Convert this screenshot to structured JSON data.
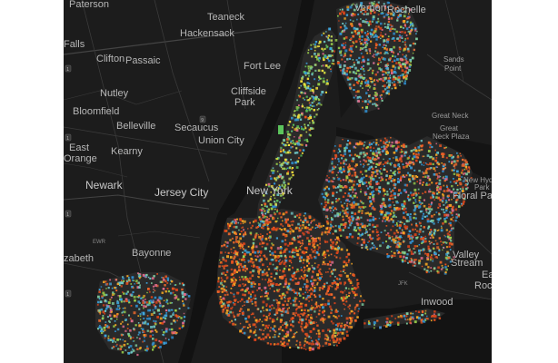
{
  "map": {
    "colors": {
      "background": "#1c1c1c",
      "water": "#121212",
      "land": "#242424",
      "page": "#ffffff",
      "label": "#b7b7b7"
    },
    "dot_palette": [
      "#e8531f",
      "#f06a2c",
      "#d9431a",
      "#3fa8e0",
      "#2f8fd0",
      "#7fd0a0",
      "#f2e03a",
      "#5cc45c",
      "#9ad14b",
      "#c0d85a",
      "#f5a623",
      "#e06b8b",
      "#6fc7c7",
      "#ffffff"
    ],
    "labels": [
      {
        "text": "Paterson"
      },
      {
        "text": "Teaneck"
      },
      {
        "text": "Hackensack"
      },
      {
        "text": "Vernon"
      },
      {
        "text": "Rochelle"
      },
      {
        "text": "Falls"
      },
      {
        "text": "Clifton"
      },
      {
        "text": "Passaic"
      },
      {
        "text": "Fort Lee"
      },
      {
        "text": "Sands"
      },
      {
        "text": "Point"
      },
      {
        "text": "Nutley"
      },
      {
        "text": "Cliffside"
      },
      {
        "text": "Park"
      },
      {
        "text": "Bloomfield"
      },
      {
        "text": "Belleville"
      },
      {
        "text": "Secaucus"
      },
      {
        "text": "Great Neck"
      },
      {
        "text": "Great"
      },
      {
        "text": "Neck Plaza"
      },
      {
        "text": "East"
      },
      {
        "text": "Orange"
      },
      {
        "text": "Union City"
      },
      {
        "text": "Kearny"
      },
      {
        "text": "New Hyde"
      },
      {
        "text": "Park"
      },
      {
        "text": "Newark"
      },
      {
        "text": "Jersey City"
      },
      {
        "text": "New York"
      },
      {
        "text": "Floral Park"
      },
      {
        "text": "EWR"
      },
      {
        "text": "Bayonne"
      },
      {
        "text": "Valley"
      },
      {
        "text": "Stream"
      },
      {
        "text": "zabeth"
      },
      {
        "text": "JFK"
      },
      {
        "text": "Inwood"
      },
      {
        "text": "East"
      },
      {
        "text": "Rock"
      }
    ],
    "shields": [
      {
        "text": "1"
      },
      {
        "text": "1"
      },
      {
        "text": "1"
      },
      {
        "text": "1"
      },
      {
        "text": "9"
      }
    ]
  }
}
